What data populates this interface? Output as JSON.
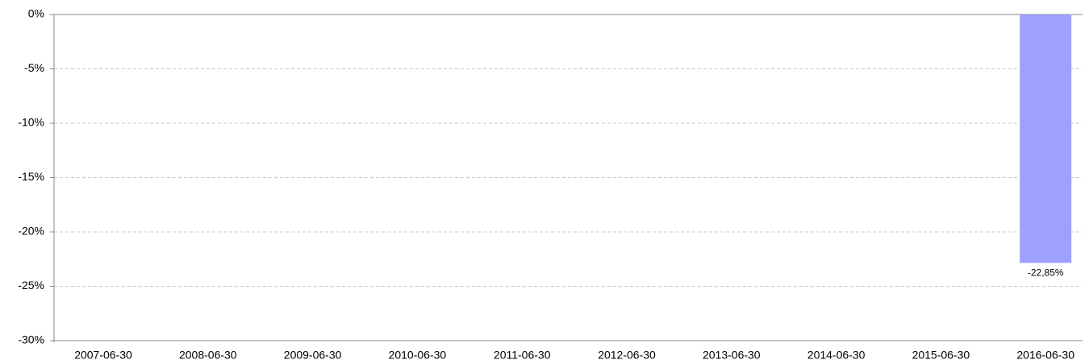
{
  "chart_data": {
    "type": "bar",
    "categories": [
      "2007-06-30",
      "2008-06-30",
      "2009-06-30",
      "2010-06-30",
      "2011-06-30",
      "2012-06-30",
      "2013-06-30",
      "2014-06-30",
      "2015-06-30",
      "2016-06-30"
    ],
    "values": [
      null,
      null,
      null,
      null,
      null,
      null,
      null,
      null,
      null,
      -22.85
    ],
    "value_labels": [
      null,
      null,
      null,
      null,
      null,
      null,
      null,
      null,
      null,
      "-22,85%"
    ],
    "color": "#9f9fff",
    "ylim": [
      -30,
      0
    ],
    "yticks": [
      {
        "value": 0,
        "label": "0%"
      },
      {
        "value": -5,
        "label": "-5%"
      },
      {
        "value": -10,
        "label": "-10%"
      },
      {
        "value": -15,
        "label": "-15%"
      },
      {
        "value": -20,
        "label": "-20%"
      },
      {
        "value": -25,
        "label": "-25%"
      },
      {
        "value": -30,
        "label": "-30%"
      }
    ],
    "grid": true
  }
}
